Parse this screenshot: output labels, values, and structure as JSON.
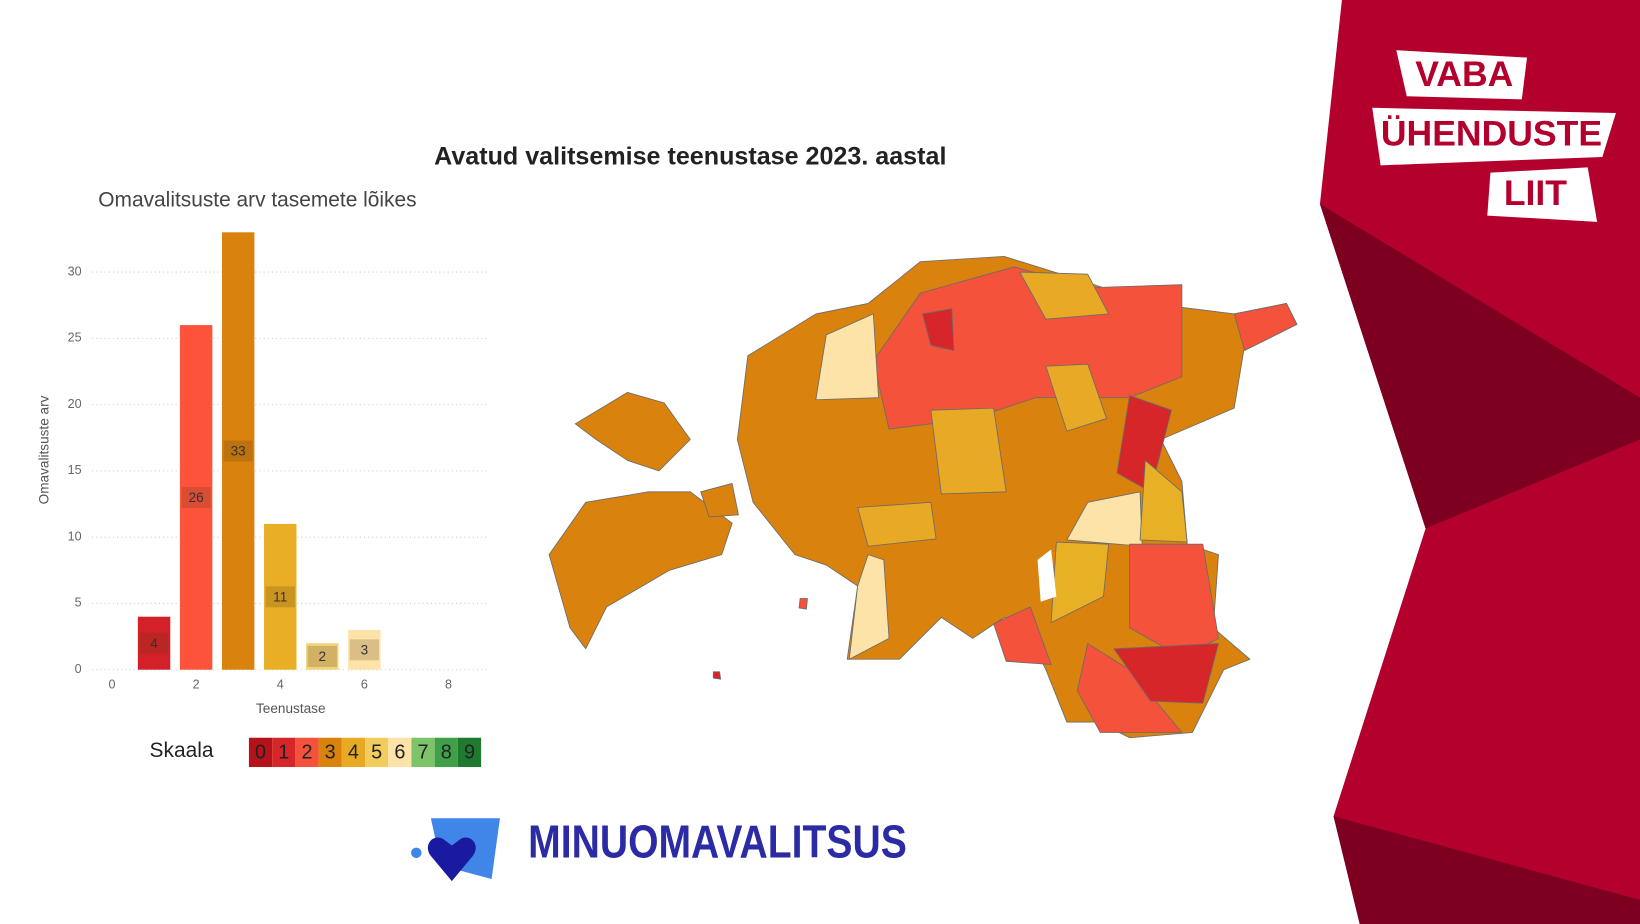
{
  "header": {
    "title": "Avatud valitsemise teenustase 2023. aastal"
  },
  "chart_data": {
    "type": "bar",
    "title": "Omavalitsuste arv tasemete lõikes",
    "x_label": "Teenustase",
    "y_label": "Omavalitsuste arv",
    "x": [
      1,
      2,
      3,
      4,
      5,
      6
    ],
    "values": [
      4,
      26,
      33,
      11,
      2,
      3
    ],
    "colors": [
      "#d42029",
      "#fe533b",
      "#d9820d",
      "#e8ae25",
      "#f2d27a",
      "#fde3a7"
    ],
    "xlim": [
      -0.4,
      8.9
    ],
    "ylim": [
      0,
      33
    ],
    "xticks": [
      0,
      2,
      4,
      6,
      8
    ],
    "yticks": [
      0,
      5,
      10,
      15,
      20,
      25,
      30
    ],
    "grid": true
  },
  "scale": {
    "label": "Skaala",
    "levels": [
      0,
      1,
      2,
      3,
      4,
      5,
      6,
      7,
      8,
      9
    ],
    "colors": [
      "#b5121b",
      "#d7262a",
      "#f4523a",
      "#d9820d",
      "#e8a925",
      "#f2cd5e",
      "#fde3a7",
      "#7cc36a",
      "#3fa048",
      "#1f7a30"
    ]
  },
  "logos": {
    "org": [
      "VABA",
      "ÜHENDUSTE",
      "LIIT"
    ],
    "site": "MINUOMAVALITSUS"
  }
}
